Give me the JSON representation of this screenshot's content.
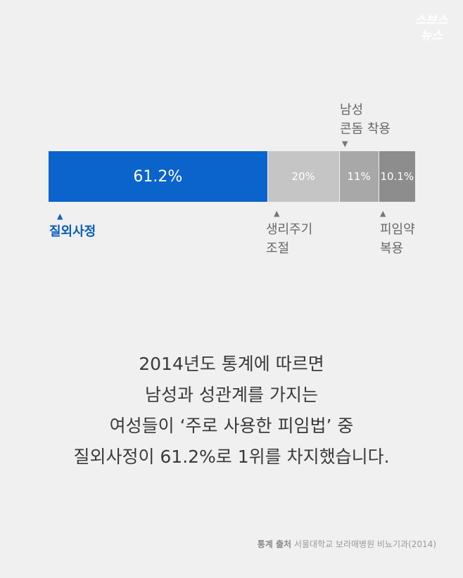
{
  "logo": {
    "line1": "스브스",
    "line2": "뉴스"
  },
  "chart_data": {
    "type": "bar",
    "orientation": "horizontal-stacked",
    "categories": [
      "질외사정",
      "생리주기 조절",
      "남성 콘돔 착용",
      "피임약 복용"
    ],
    "values": [
      61.2,
      20,
      11,
      10.1
    ],
    "value_labels": [
      "61.2%",
      "20%",
      "11%",
      "10.1%"
    ],
    "colors": [
      "#0a64cc",
      "#c5c5c5",
      "#a8a8a8",
      "#8d8d8d"
    ]
  },
  "labels": {
    "withdrawal": "질외사정",
    "cycle_line1": "생리주기",
    "cycle_line2": "조절",
    "condom_line1": "남성",
    "condom_line2": "콘돔 착용",
    "pill_line1": "피임약",
    "pill_line2": "복용"
  },
  "markers": {
    "up": "▲",
    "down": "▼"
  },
  "caption": [
    "2014년도 통계에 따르면",
    "남성과 성관계를 가지는",
    "여성들이 ‘주로 사용한 피임법’ 중",
    "질외사정이 61.2%로 1위를 차지했습니다."
  ],
  "source": {
    "label": "통계 출처",
    "text": "서울대학교 보라매병원 비뇨기과(2014)"
  }
}
